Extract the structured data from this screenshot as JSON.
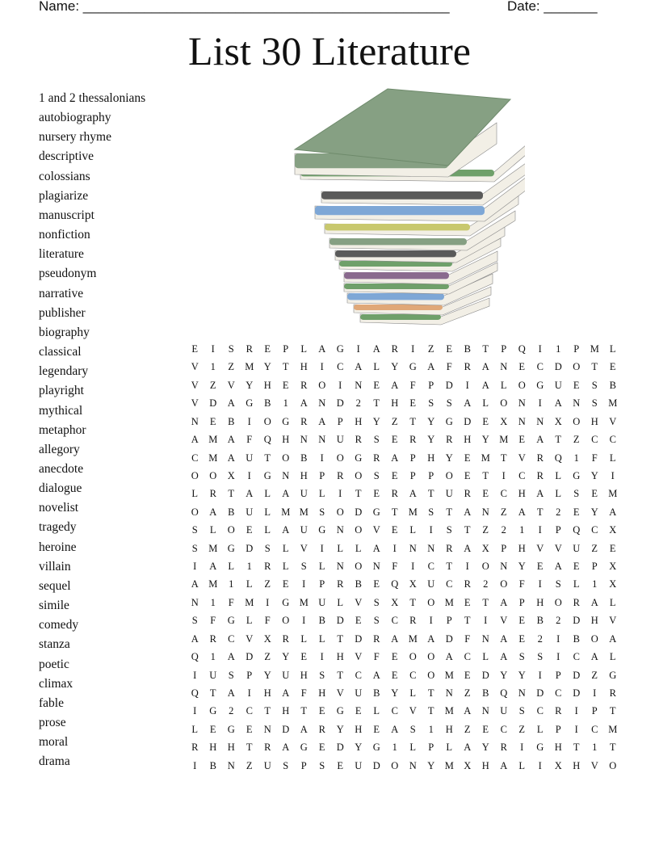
{
  "header": {
    "name_label": "Name: ________________________________________________",
    "date_label": "Date: _______"
  },
  "title": "List 30 Literature",
  "word_list": [
    "1 and 2 thessalonians",
    "autobiography",
    "nursery rhyme",
    "descriptive",
    "colossians",
    "plagiarize",
    "manuscript",
    "nonfiction",
    "literature",
    "pseudonym",
    "narrative",
    "publisher",
    "biography",
    "classical",
    "legendary",
    "playright",
    "mythical",
    "metaphor",
    "allegory",
    "anecdote",
    "dialogue",
    "novelist",
    "tragedy",
    "heroine",
    "villain",
    "sequel",
    "simile",
    "comedy",
    "stanza",
    "poetic",
    "climax",
    "fable",
    "prose",
    "moral",
    "drama"
  ],
  "grid": [
    "E I S R E P L A G I A R I Z E B T P Q I 1 P M L",
    "V 1 Z M Y T H I C A L Y G A F R A N E C D O T E",
    "V Z V Y H E R O I N E A F P D I A L O G U E S B",
    "V D A G B 1 A N D 2 T H E S S A L O N I A N S M",
    "N E B I O G R A P H Y Z T Y G D E X N N X O H V",
    "A M A F Q H N N U R S E R Y R H Y M E A T Z C C",
    "C M A U T O B I O G R A P H Y E M T V R Q 1 F L",
    "O O X I G N H P R O S E P P O E T I C R L G Y I",
    "L R T A L A U L I T E R A T U R E C H A L S E M",
    "O A B U L M M S O D G T M S T A N Z A T 2 E Y A",
    "S L O E L A U G N O V E L I S T Z 2 1 I P Q C X",
    "S M G D S L V I L L A I N N R A X P H V V U Z E",
    "I A L 1 R L S L N O N F I C T I O N Y E A E P X",
    "A M 1 L Z E I P R B E Q X U C R 2 O F I S L 1 X",
    "N 1 F M I G M U L V S X T O M E T A P H O R A L",
    "S F G L F O I B D E S C R I P T I V E B 2 D H V",
    "A R C V X R L L T D R A M A D F N A E 2 I B O A",
    "Q 1 A D Z Y E I H V F E O O A C L A S S I C A L",
    "I U S P Y U H S T C A E C O M E D Y Y I P D Z G",
    "Q T A I H A F H V U B Y L T N Z B Q N D C D I R",
    "I G 2 C T H T E G E L C V T M A N U S C R I P T",
    "L E G E N D A R Y H E A S 1 H Z E C Z L P I C M",
    "R H H T R A G E D Y G 1 L P L A Y R I G H T 1 T",
    "I B N Z U S P S E U D O N Y M X H A L I X H V O"
  ],
  "image": {
    "icon": "book-stack-icon",
    "colors": [
      "#86a083",
      "#6fa06a",
      "#5a5a5a",
      "#7ea7d6",
      "#c8c86e",
      "#8a6a8e",
      "#e0a878",
      "#f2efe6"
    ]
  }
}
